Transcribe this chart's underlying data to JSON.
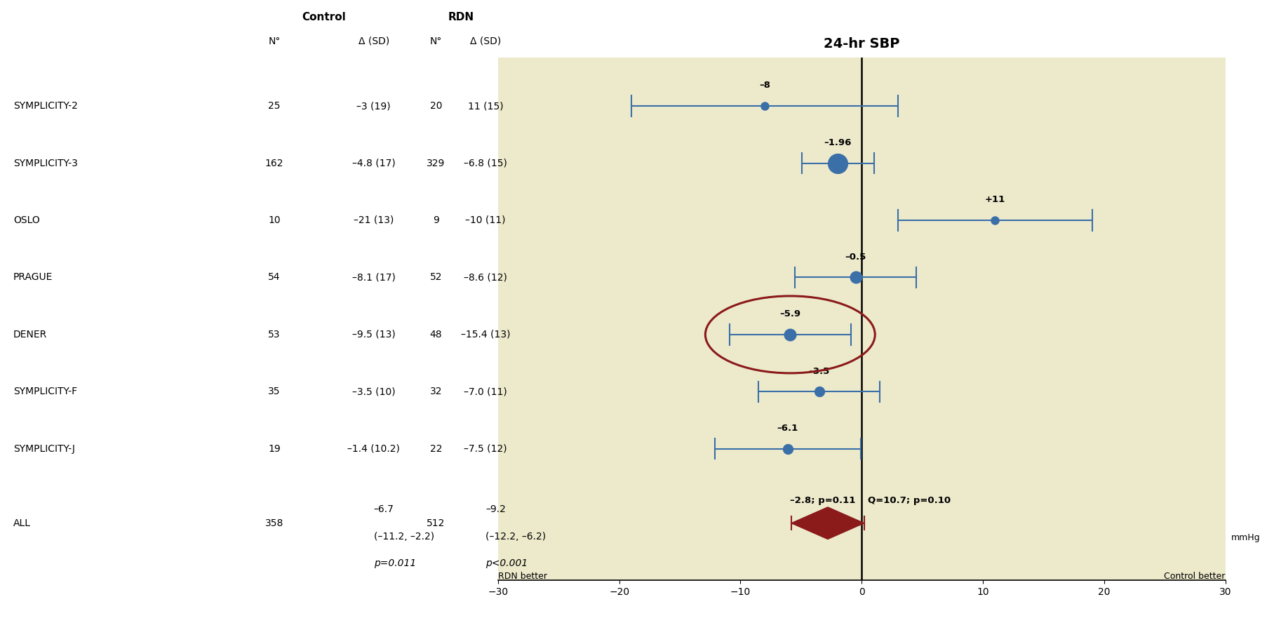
{
  "title": "24-hr SBP",
  "studies": [
    "SYMPLICITY-2",
    "SYMPLICITY-3",
    "OSLO",
    "PRAGUE",
    "DENER",
    "SYMPLICITY-F",
    "SYMPLICITY-J",
    "ALL"
  ],
  "control_n": [
    "25",
    "162",
    "10",
    "54",
    "53",
    "35",
    "19",
    "358"
  ],
  "control_delta": [
    "–3 (19)",
    "–4.8 (17)",
    "–21 (13)",
    "–8.1 (17)",
    "–9.5 (13)",
    "–3.5 (10)",
    "–1.4 (10.2)",
    "–6.7"
  ],
  "control_delta2": [
    "",
    "",
    "",
    "",
    "",
    "",
    "",
    "(–11.2, –2.2)"
  ],
  "rdn_n": [
    "20",
    "329",
    "9",
    "52",
    "48",
    "32",
    "22",
    "512"
  ],
  "rdn_delta": [
    "11 (15)",
    "–6.8 (15)",
    "–10 (11)",
    "–8.6 (12)",
    "–15.4 (13)",
    "–7.0 (11)",
    "–7.5 (12)",
    "–9.2"
  ],
  "rdn_delta2": [
    "",
    "",
    "",
    "",
    "",
    "",
    "",
    "(–12.2, –6.2)"
  ],
  "control_p": "p=0.011",
  "rdn_p": "p<0.001",
  "effect_sizes": [
    -8,
    -1.96,
    11,
    -0.5,
    -5.9,
    -3.5,
    -6.1,
    -2.8
  ],
  "effect_labels": [
    "–8",
    "–1.96",
    "+11",
    "–0.5",
    "–5.9",
    "–3.5",
    "–6.1",
    "–2.8; p=0.11"
  ],
  "ci_lower": [
    -19,
    -4.96,
    3,
    -5.5,
    -10.9,
    -8.5,
    -12.1,
    -5.8
  ],
  "ci_upper": [
    3,
    1.04,
    19,
    4.5,
    -0.9,
    1.5,
    -0.1,
    0.2
  ],
  "marker_sizes": [
    8,
    20,
    8,
    12,
    12,
    10,
    10,
    0
  ],
  "q_stat": "Q=10.7; p=0.10",
  "xlim": [
    -30,
    30
  ],
  "xticks": [
    -30,
    -20,
    -10,
    0,
    10,
    20,
    30
  ],
  "xlabel_left": "RDN better",
  "xlabel_right": "Control better",
  "xlabel_unit": "30 mmHg",
  "bg_color": "#edeacc",
  "dot_color": "#3a6fa8",
  "diamond_color": "#8b1a1a",
  "ellipse_color": "#8b1a1a",
  "dener_index": 4
}
